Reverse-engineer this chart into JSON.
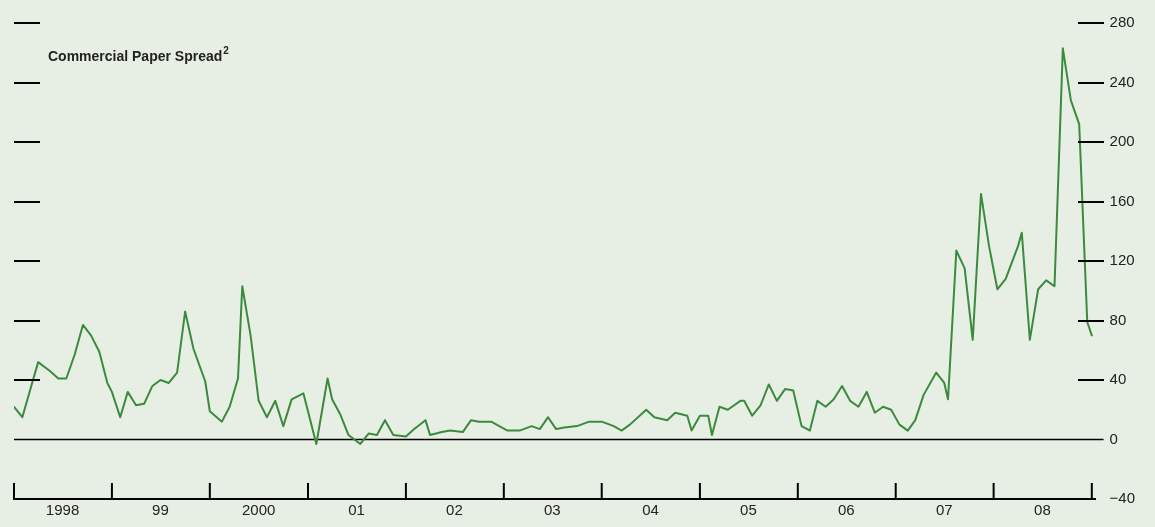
{
  "chart_data": {
    "type": "line",
    "title": "Commercial Paper Spread$^{2}$",
    "x": [
      "1998-01-01",
      "1998-02-01",
      "1998-04-01",
      "1998-05-15",
      "1998-06-15",
      "1998-07-15",
      "1998-08-15",
      "1998-09-15",
      "1998-10-15",
      "1998-11-15",
      "1998-12-15",
      "1999-01-01",
      "1999-02-01",
      "1999-03-01",
      "1999-04-01",
      "1999-05-01",
      "1999-06-01",
      "1999-07-01",
      "1999-08-01",
      "1999-09-01",
      "1999-10-01",
      "1999-11-01",
      "1999-12-15",
      "2000-01-01",
      "2000-02-15",
      "2000-03-15",
      "2000-04-15",
      "2000-05-01",
      "2000-06-01",
      "2000-07-01",
      "2000-08-01",
      "2000-09-01",
      "2000-10-01",
      "2000-11-01",
      "2000-12-15",
      "2001-01-01",
      "2001-02-01",
      "2001-03-15",
      "2001-04-01",
      "2001-05-01",
      "2001-06-01",
      "2001-07-15",
      "2001-08-15",
      "2001-09-15",
      "2001-10-15",
      "2001-11-15",
      "2002-01-01",
      "2002-02-01",
      "2002-03-15",
      "2002-04-01",
      "2002-05-15",
      "2002-06-15",
      "2002-08-01",
      "2002-09-01",
      "2002-10-01",
      "2002-11-15",
      "2002-12-15",
      "2003-01-15",
      "2003-03-01",
      "2003-04-15",
      "2003-05-15",
      "2003-06-15",
      "2003-07-15",
      "2003-08-15",
      "2003-10-01",
      "2003-11-15",
      "2004-01-01",
      "2004-02-15",
      "2004-03-15",
      "2004-04-15",
      "2004-06-15",
      "2004-07-15",
      "2004-09-01",
      "2004-10-01",
      "2004-11-15",
      "2004-12-01",
      "2005-01-01",
      "2005-02-01",
      "2005-02-15",
      "2005-03-15",
      "2005-04-15",
      "2005-06-01",
      "2005-06-15",
      "2005-07-15",
      "2005-08-15",
      "2005-09-15",
      "2005-10-15",
      "2005-11-15",
      "2005-12-15",
      "2006-01-15",
      "2006-02-15",
      "2006-03-15",
      "2006-04-15",
      "2006-05-15",
      "2006-06-15",
      "2006-07-15",
      "2006-08-15",
      "2006-09-15",
      "2006-10-15",
      "2006-11-15",
      "2006-12-15",
      "2007-01-15",
      "2007-02-15",
      "2007-03-15",
      "2007-04-15",
      "2007-06-01",
      "2007-07-01",
      "2007-07-15",
      "2007-08-15",
      "2007-09-15",
      "2007-10-15",
      "2007-11-15",
      "2007-12-15",
      "2008-01-15",
      "2008-02-15",
      "2008-04-01",
      "2008-04-15",
      "2008-05-15",
      "2008-06-15",
      "2008-07-15",
      "2008-08-15",
      "2008-09-15",
      "2008-10-15",
      "2008-11-15",
      "2008-12-15",
      "2009-01-01"
    ],
    "series": [
      {
        "color": "#3c8a3c",
        "values": [
          22,
          15,
          52,
          46,
          41,
          41,
          57,
          77,
          70,
          59,
          38,
          32,
          15,
          32,
          23,
          24,
          36,
          40,
          38,
          45,
          86,
          61,
          39,
          19,
          12,
          22,
          41,
          103,
          70,
          26,
          15,
          26,
          9,
          27,
          31,
          19,
          -3,
          41,
          27,
          17,
          3,
          -3,
          4,
          3,
          13,
          3,
          2,
          7,
          13,
          3,
          5,
          6,
          5,
          13,
          12,
          12,
          9,
          6,
          6,
          9,
          7,
          15,
          7,
          8,
          9,
          12,
          12,
          9,
          6,
          10,
          20,
          15,
          13,
          18,
          16,
          6,
          16,
          16,
          3,
          22,
          20,
          26,
          26,
          16,
          23,
          37,
          26,
          34,
          33,
          9,
          6,
          26,
          22,
          27,
          36,
          26,
          22,
          32,
          18,
          22,
          20,
          10,
          6,
          13,
          30,
          45,
          38,
          27,
          127,
          115,
          67,
          165,
          130,
          101,
          108,
          130,
          139,
          67,
          101,
          107,
          103,
          263,
          228,
          212,
          79,
          70
        ]
      }
    ],
    "xlim": [
      "1998-01-01",
      "2009-01-15"
    ],
    "xticks": [
      {
        "value": "1998-01-01",
        "label": null
      },
      {
        "value": "1998-07-01",
        "label": "1998"
      },
      {
        "value": "1999-01-01",
        "label": null
      },
      {
        "value": "1999-07-01",
        "label": "99"
      },
      {
        "value": "2000-01-01",
        "label": null
      },
      {
        "value": "2000-07-01",
        "label": "2000"
      },
      {
        "value": "2001-01-01",
        "label": null
      },
      {
        "value": "2001-07-01",
        "label": "01"
      },
      {
        "value": "2002-01-01",
        "label": null
      },
      {
        "value": "2002-07-01",
        "label": "02"
      },
      {
        "value": "2003-01-01",
        "label": null
      },
      {
        "value": "2003-07-01",
        "label": "03"
      },
      {
        "value": "2004-01-01",
        "label": null
      },
      {
        "value": "2004-07-01",
        "label": "04"
      },
      {
        "value": "2005-01-01",
        "label": null
      },
      {
        "value": "2005-07-01",
        "label": "05"
      },
      {
        "value": "2006-01-01",
        "label": null
      },
      {
        "value": "2006-07-01",
        "label": "06"
      },
      {
        "value": "2007-01-01",
        "label": null
      },
      {
        "value": "2007-07-01",
        "label": "07"
      },
      {
        "value": "2008-01-01",
        "label": null
      },
      {
        "value": "2008-07-01",
        "label": "08"
      },
      {
        "value": "2009-01-01",
        "label": null
      }
    ],
    "ylim": [
      -40,
      280
    ],
    "yticks": [
      {
        "value": -40,
        "label": "−40"
      },
      0,
      40,
      80,
      120,
      160,
      200,
      240,
      280
    ],
    "ref_lines": [
      {
        "axis": "y",
        "value": 0,
        "color": "#000000"
      }
    ],
    "grid": false,
    "legend": false,
    "marker": "none",
    "line_style": "solid"
  }
}
